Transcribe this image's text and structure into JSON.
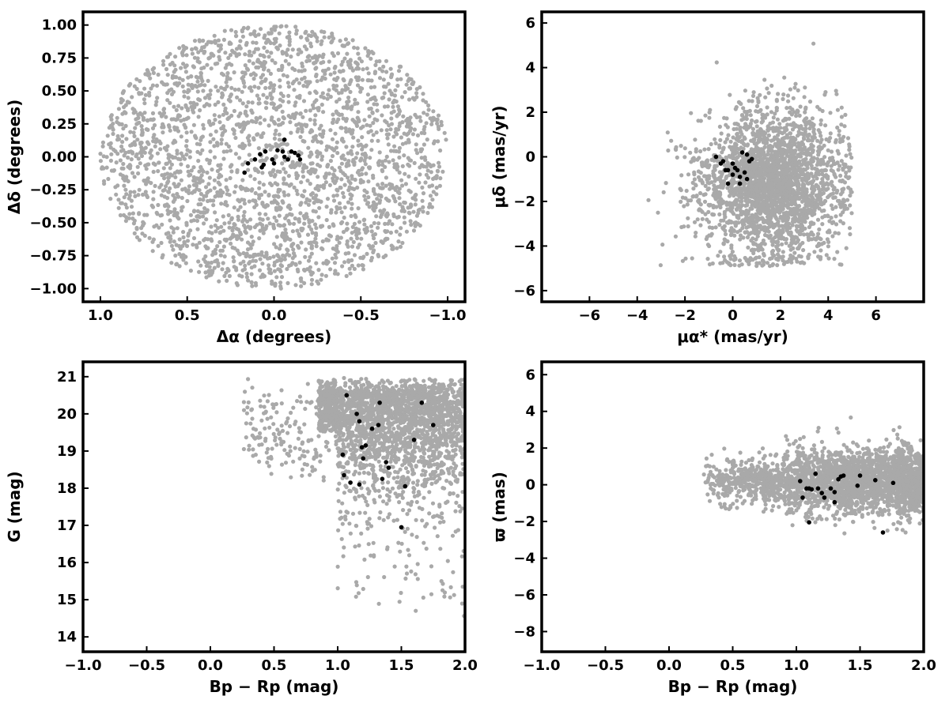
{
  "chart_data": [
    {
      "type": "scatter",
      "xlabel": "Δα (degrees)",
      "ylabel": "Δδ (degrees)",
      "xlim": [
        1.1,
        -1.1
      ],
      "ylim": [
        -1.1,
        1.1
      ],
      "xticks": [
        1.0,
        0.5,
        0.0,
        -0.5,
        -1.0
      ],
      "xtick_labels": [
        "1.0",
        "0.5",
        "0.0",
        "−0.5",
        "−1.0"
      ],
      "yticks": [
        1.0,
        0.75,
        0.5,
        0.25,
        0.0,
        -0.25,
        -0.5,
        -0.75,
        -1.0
      ],
      "ytick_labels": [
        "1.00",
        "0.75",
        "0.50",
        "0.25",
        "0.00",
        "−0.25",
        "−0.50",
        "−0.75",
        "−1.00"
      ],
      "series": [
        {
          "color": "#a9a9a9",
          "distribution": "uniform-disk",
          "center": [
            0,
            0
          ],
          "radius": 1.0,
          "n": 2600
        },
        {
          "color": "#000000",
          "x": [
            0.17,
            0.15,
            0.11,
            0.08,
            0.06,
            0.07,
            0.05,
            0.01,
            -0.02,
            -0.05,
            -0.06,
            -0.08,
            -0.1,
            -0.12,
            -0.14,
            -0.15,
            -0.06,
            0.0
          ],
          "y": [
            -0.12,
            -0.05,
            -0.02,
            0.02,
            -0.06,
            -0.08,
            0.04,
            -0.02,
            0.05,
            0.04,
            0.13,
            -0.02,
            0.04,
            0.03,
            0.01,
            -0.02,
            0.0,
            -0.05
          ]
        }
      ]
    },
    {
      "type": "scatter",
      "xlabel": "μα* (mas/yr)",
      "ylabel": "μδ (mas/yr)",
      "xlim": [
        -8,
        8
      ],
      "ylim": [
        -6.5,
        6.5
      ],
      "xticks": [
        -6,
        -4,
        -2,
        0,
        2,
        4,
        6
      ],
      "xtick_labels": [
        "−6",
        "−4",
        "−2",
        "0",
        "2",
        "4",
        "6"
      ],
      "yticks": [
        6,
        4,
        2,
        0,
        -2,
        -4,
        -6
      ],
      "ytick_labels": [
        "6",
        "4",
        "2",
        "0",
        "−2",
        "−4",
        "−6"
      ],
      "series": [
        {
          "color": "#a9a9a9",
          "distribution": "gaussian",
          "center": [
            1.6,
            -1.2
          ],
          "sigma": [
            1.5,
            1.6
          ],
          "n": 2600
        },
        {
          "color": "#000000",
          "x": [
            -0.7,
            -0.5,
            -0.3,
            -0.2,
            0.0,
            0.1,
            0.3,
            0.4,
            0.5,
            0.6,
            0.7,
            0.8,
            0.2,
            -0.4,
            0.0,
            0.3,
            0.6,
            -0.2
          ],
          "y": [
            0.0,
            -0.3,
            -0.6,
            -1.2,
            -0.8,
            -0.5,
            -1.2,
            0.2,
            -0.7,
            0.1,
            -0.2,
            -0.1,
            -0.6,
            -0.2,
            -0.3,
            -0.9,
            -1.0,
            -0.6
          ]
        }
      ]
    },
    {
      "type": "scatter",
      "xlabel": "Bp − Rp (mag)",
      "ylabel": "G (mag)",
      "xlim": [
        -1.0,
        2.0
      ],
      "ylim": [
        13.6,
        21.4
      ],
      "xticks": [
        -1.0,
        -0.5,
        0.0,
        0.5,
        1.0,
        1.5,
        2.0
      ],
      "xtick_labels": [
        "−1.0",
        "−0.5",
        "0.0",
        "0.5",
        "1.0",
        "1.5",
        "2.0"
      ],
      "yticks": [
        21,
        20,
        19,
        18,
        17,
        16,
        15,
        14
      ],
      "ytick_labels": [
        "21",
        "20",
        "19",
        "18",
        "17",
        "16",
        "15",
        "14"
      ],
      "series": [
        {
          "color": "#a9a9a9",
          "distribution": "color-magnitude",
          "x_range": [
            0.25,
            2.0
          ],
          "y_range": [
            14.5,
            21.0
          ],
          "n": 2600
        },
        {
          "color": "#000000",
          "x": [
            1.07,
            1.15,
            1.17,
            1.27,
            1.32,
            1.33,
            1.66,
            1.75,
            1.19,
            1.22,
            1.6,
            1.04,
            1.2,
            1.38,
            1.4,
            1.05,
            1.1,
            1.17,
            1.35,
            1.53,
            1.5
          ],
          "y": [
            20.5,
            20.0,
            19.8,
            19.6,
            19.7,
            20.3,
            20.3,
            19.7,
            19.1,
            19.15,
            19.3,
            18.9,
            18.8,
            18.7,
            18.55,
            18.35,
            18.15,
            18.1,
            18.25,
            18.05,
            16.95
          ]
        }
      ]
    },
    {
      "type": "scatter",
      "xlabel": "Bp − Rp (mag)",
      "ylabel": "ϖ (mas)",
      "xlim": [
        -1.0,
        2.0
      ],
      "ylim": [
        -9.1,
        6.7
      ],
      "xticks": [
        -1.0,
        -0.5,
        0.0,
        0.5,
        1.0,
        1.5,
        2.0
      ],
      "xtick_labels": [
        "−1.0",
        "−0.5",
        "0.0",
        "0.5",
        "1.0",
        "1.5",
        "2.0"
      ],
      "yticks": [
        6,
        4,
        2,
        0,
        -2,
        -4,
        -6,
        -8
      ],
      "ytick_labels": [
        "6",
        "4",
        "2",
        "0",
        "−2",
        "−4",
        "−6",
        "−8"
      ],
      "series": [
        {
          "color": "#a9a9a9",
          "distribution": "gaussian-band",
          "x_range": [
            0.25,
            2.0
          ],
          "center_y": 0.2,
          "sigma_y": 0.9,
          "n": 2600
        },
        {
          "color": "#000000",
          "x": [
            1.03,
            1.05,
            1.08,
            1.1,
            1.12,
            1.15,
            1.17,
            1.2,
            1.22,
            1.27,
            1.3,
            1.33,
            1.35,
            1.37,
            1.48,
            1.5,
            1.62,
            1.76,
            1.68,
            1.1,
            1.3
          ],
          "y": [
            0.2,
            -0.7,
            -0.2,
            -2.05,
            -0.25,
            0.6,
            -0.2,
            -0.45,
            -0.7,
            -0.2,
            -0.4,
            0.3,
            0.45,
            0.5,
            -0.05,
            0.5,
            0.25,
            0.1,
            -2.6,
            -0.2,
            -0.95
          ]
        }
      ]
    }
  ]
}
